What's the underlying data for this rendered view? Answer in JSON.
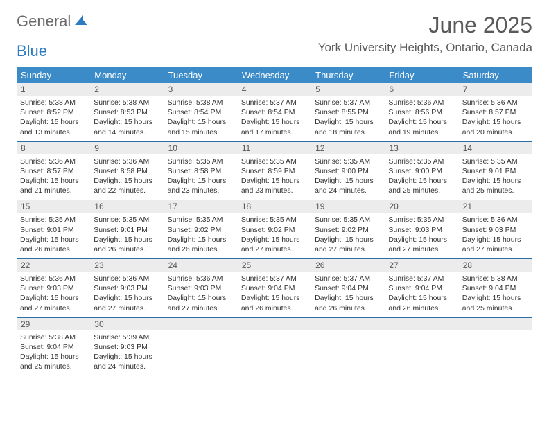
{
  "logo": {
    "part1": "General",
    "part2": "Blue"
  },
  "title": "June 2025",
  "location": "York University Heights, Ontario, Canada",
  "colors": {
    "header_bar": "#3b8bc8",
    "week_divider": "#2d6ea8",
    "daynum_bg": "#ececec",
    "text": "#333333",
    "title_text": "#5a5a5a",
    "logo_gray": "#6a6a6a",
    "logo_blue": "#2d7cc1"
  },
  "dow": [
    "Sunday",
    "Monday",
    "Tuesday",
    "Wednesday",
    "Thursday",
    "Friday",
    "Saturday"
  ],
  "days": [
    {
      "n": "1",
      "sunrise": "5:38 AM",
      "sunset": "8:52 PM",
      "dl": "15 hours and 13 minutes."
    },
    {
      "n": "2",
      "sunrise": "5:38 AM",
      "sunset": "8:53 PM",
      "dl": "15 hours and 14 minutes."
    },
    {
      "n": "3",
      "sunrise": "5:38 AM",
      "sunset": "8:54 PM",
      "dl": "15 hours and 15 minutes."
    },
    {
      "n": "4",
      "sunrise": "5:37 AM",
      "sunset": "8:54 PM",
      "dl": "15 hours and 17 minutes."
    },
    {
      "n": "5",
      "sunrise": "5:37 AM",
      "sunset": "8:55 PM",
      "dl": "15 hours and 18 minutes."
    },
    {
      "n": "6",
      "sunrise": "5:36 AM",
      "sunset": "8:56 PM",
      "dl": "15 hours and 19 minutes."
    },
    {
      "n": "7",
      "sunrise": "5:36 AM",
      "sunset": "8:57 PM",
      "dl": "15 hours and 20 minutes."
    },
    {
      "n": "8",
      "sunrise": "5:36 AM",
      "sunset": "8:57 PM",
      "dl": "15 hours and 21 minutes."
    },
    {
      "n": "9",
      "sunrise": "5:36 AM",
      "sunset": "8:58 PM",
      "dl": "15 hours and 22 minutes."
    },
    {
      "n": "10",
      "sunrise": "5:35 AM",
      "sunset": "8:58 PM",
      "dl": "15 hours and 23 minutes."
    },
    {
      "n": "11",
      "sunrise": "5:35 AM",
      "sunset": "8:59 PM",
      "dl": "15 hours and 23 minutes."
    },
    {
      "n": "12",
      "sunrise": "5:35 AM",
      "sunset": "9:00 PM",
      "dl": "15 hours and 24 minutes."
    },
    {
      "n": "13",
      "sunrise": "5:35 AM",
      "sunset": "9:00 PM",
      "dl": "15 hours and 25 minutes."
    },
    {
      "n": "14",
      "sunrise": "5:35 AM",
      "sunset": "9:01 PM",
      "dl": "15 hours and 25 minutes."
    },
    {
      "n": "15",
      "sunrise": "5:35 AM",
      "sunset": "9:01 PM",
      "dl": "15 hours and 26 minutes."
    },
    {
      "n": "16",
      "sunrise": "5:35 AM",
      "sunset": "9:01 PM",
      "dl": "15 hours and 26 minutes."
    },
    {
      "n": "17",
      "sunrise": "5:35 AM",
      "sunset": "9:02 PM",
      "dl": "15 hours and 26 minutes."
    },
    {
      "n": "18",
      "sunrise": "5:35 AM",
      "sunset": "9:02 PM",
      "dl": "15 hours and 27 minutes."
    },
    {
      "n": "19",
      "sunrise": "5:35 AM",
      "sunset": "9:02 PM",
      "dl": "15 hours and 27 minutes."
    },
    {
      "n": "20",
      "sunrise": "5:35 AM",
      "sunset": "9:03 PM",
      "dl": "15 hours and 27 minutes."
    },
    {
      "n": "21",
      "sunrise": "5:36 AM",
      "sunset": "9:03 PM",
      "dl": "15 hours and 27 minutes."
    },
    {
      "n": "22",
      "sunrise": "5:36 AM",
      "sunset": "9:03 PM",
      "dl": "15 hours and 27 minutes."
    },
    {
      "n": "23",
      "sunrise": "5:36 AM",
      "sunset": "9:03 PM",
      "dl": "15 hours and 27 minutes."
    },
    {
      "n": "24",
      "sunrise": "5:36 AM",
      "sunset": "9:03 PM",
      "dl": "15 hours and 27 minutes."
    },
    {
      "n": "25",
      "sunrise": "5:37 AM",
      "sunset": "9:04 PM",
      "dl": "15 hours and 26 minutes."
    },
    {
      "n": "26",
      "sunrise": "5:37 AM",
      "sunset": "9:04 PM",
      "dl": "15 hours and 26 minutes."
    },
    {
      "n": "27",
      "sunrise": "5:37 AM",
      "sunset": "9:04 PM",
      "dl": "15 hours and 26 minutes."
    },
    {
      "n": "28",
      "sunrise": "5:38 AM",
      "sunset": "9:04 PM",
      "dl": "15 hours and 25 minutes."
    },
    {
      "n": "29",
      "sunrise": "5:38 AM",
      "sunset": "9:04 PM",
      "dl": "15 hours and 25 minutes."
    },
    {
      "n": "30",
      "sunrise": "5:39 AM",
      "sunset": "9:03 PM",
      "dl": "15 hours and 24 minutes."
    }
  ],
  "labels": {
    "sunrise": "Sunrise:",
    "sunset": "Sunset:",
    "daylight": "Daylight:"
  },
  "layout": {
    "first_weekday": 0,
    "num_days": 30,
    "weeks": 5,
    "trailing_empty": 5
  }
}
